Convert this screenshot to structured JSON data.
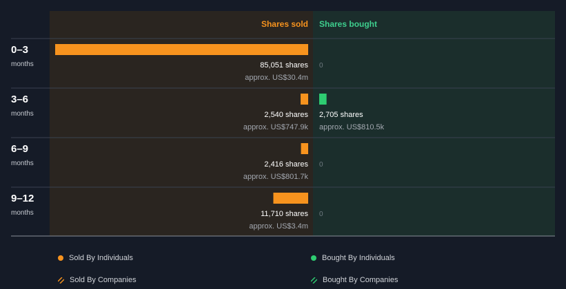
{
  "chart_data": {
    "type": "bar",
    "orientation": "horizontal-diverging",
    "headers": {
      "sold": "Shares sold",
      "bought": "Shares bought"
    },
    "periods": [
      {
        "label": "0–3",
        "unit": "months",
        "sold_shares": 85051,
        "sold_label": "85,051 shares",
        "sold_value": "approx. US$30.4m",
        "bought_shares": 0,
        "bought_label": "0",
        "bought_value": ""
      },
      {
        "label": "3–6",
        "unit": "months",
        "sold_shares": 2540,
        "sold_label": "2,540 shares",
        "sold_value": "approx. US$747.9k",
        "bought_shares": 2705,
        "bought_label": "2,705 shares",
        "bought_value": "approx. US$810.5k"
      },
      {
        "label": "6–9",
        "unit": "months",
        "sold_shares": 2416,
        "sold_label": "2,416 shares",
        "sold_value": "approx. US$801.7k",
        "bought_shares": 0,
        "bought_label": "0",
        "bought_value": ""
      },
      {
        "label": "9–12",
        "unit": "months",
        "sold_shares": 11710,
        "sold_label": "11,710 shares",
        "sold_value": "approx. US$3.4m",
        "bought_shares": 0,
        "bought_label": "0",
        "bought_value": ""
      }
    ],
    "max_shares": 85051
  },
  "colors": {
    "background": "#151b27",
    "sold_panel": "#2a2520",
    "bought_panel": "#1b2e2c",
    "sold_bar": "#f7931e",
    "bought_bar": "#2ecc71",
    "sold_header": "#f7931e",
    "bought_header": "#3ecf8e"
  },
  "legend": {
    "sold_individuals": "Sold By Individuals",
    "bought_individuals": "Bought By Individuals",
    "sold_companies": "Sold By Companies",
    "bought_companies": "Bought By Companies"
  }
}
